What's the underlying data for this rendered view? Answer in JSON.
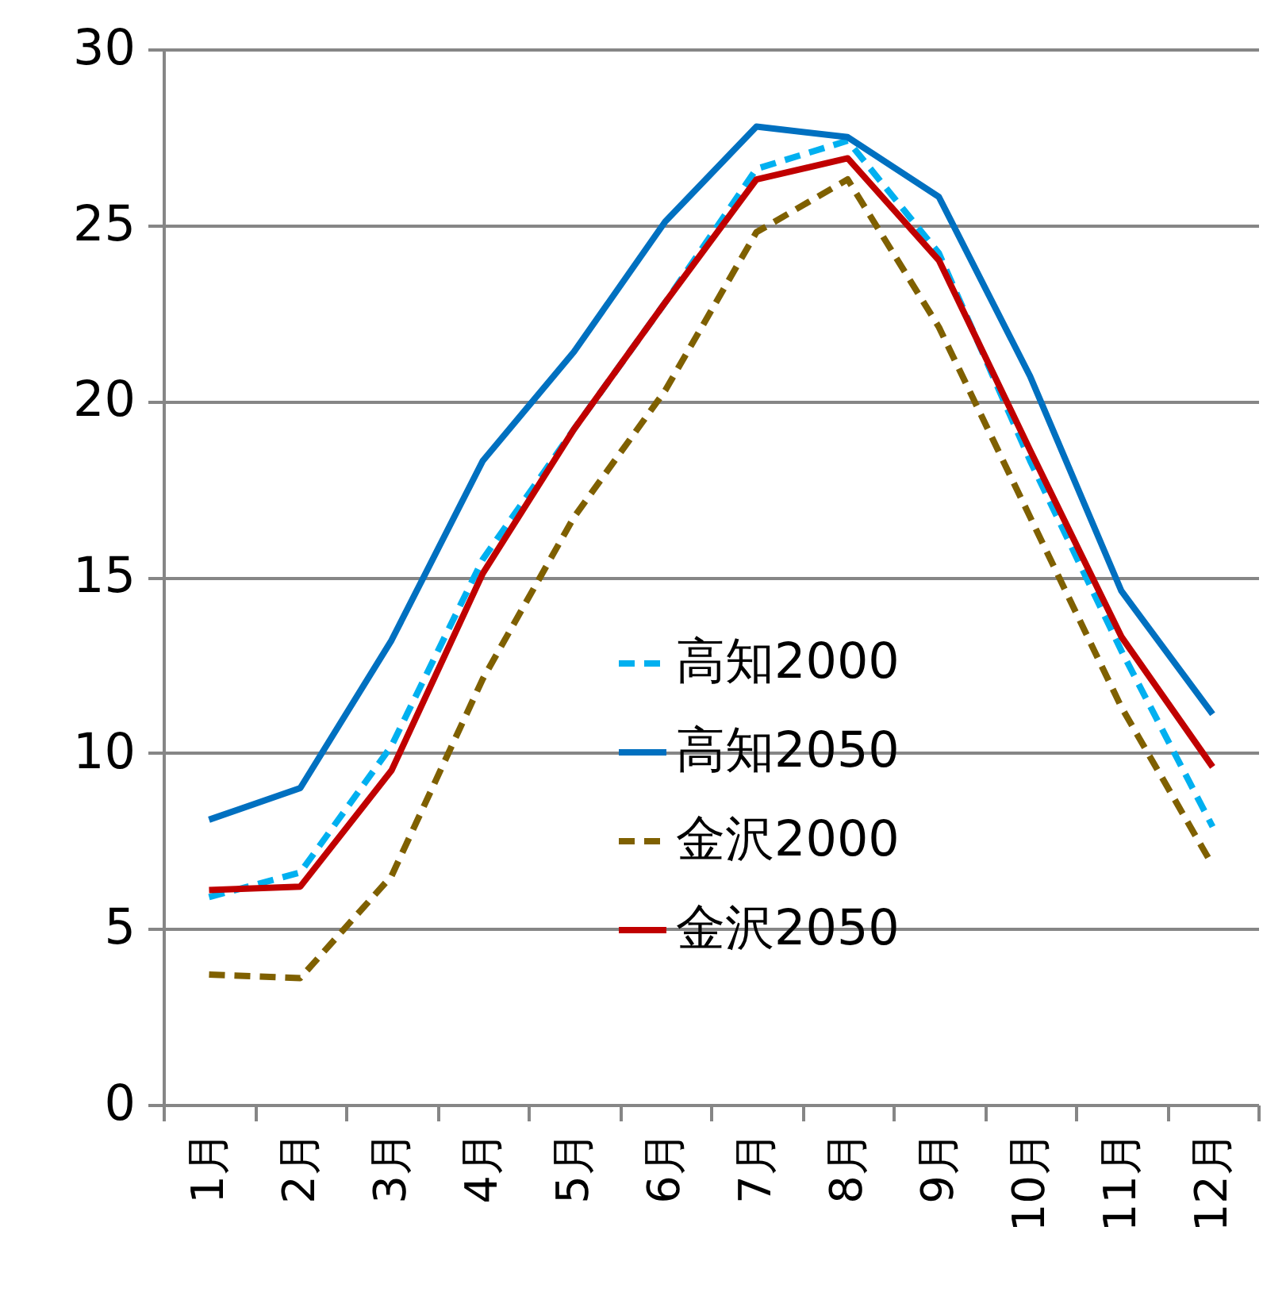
{
  "chart_data": {
    "type": "line",
    "categories": [
      "1月",
      "2月",
      "3月",
      "4月",
      "5月",
      "6月",
      "7月",
      "8月",
      "9月",
      "10月",
      "11月",
      "12月"
    ],
    "series": [
      {
        "name": "高知2000",
        "color": "#00b0f0",
        "line_style": "dashed",
        "values": [
          5.9,
          6.6,
          10.2,
          15.5,
          19.2,
          22.8,
          26.6,
          27.4,
          24.2,
          18.3,
          12.9,
          7.9
        ]
      },
      {
        "name": "高知2050",
        "color": "#0070c0",
        "line_style": "solid",
        "values": [
          8.1,
          9.0,
          13.2,
          18.3,
          21.4,
          25.1,
          27.8,
          27.5,
          25.8,
          20.7,
          14.6,
          11.1
        ]
      },
      {
        "name": "金沢2000",
        "color": "#7f6000",
        "line_style": "dashed",
        "values": [
          3.7,
          3.6,
          6.5,
          12.1,
          16.7,
          20.3,
          24.8,
          26.3,
          22.1,
          16.7,
          11.3,
          6.8
        ]
      },
      {
        "name": "金沢2050",
        "color": "#c00000",
        "line_style": "solid",
        "values": [
          6.1,
          6.2,
          9.5,
          15.1,
          19.2,
          22.8,
          26.3,
          26.9,
          24.0,
          18.6,
          13.3,
          9.6
        ]
      }
    ],
    "ylim": [
      0,
      30
    ],
    "yticks": [
      0,
      5,
      10,
      15,
      20,
      25,
      30
    ],
    "grid": "y",
    "legend": "bottom right",
    "marker": "none"
  }
}
